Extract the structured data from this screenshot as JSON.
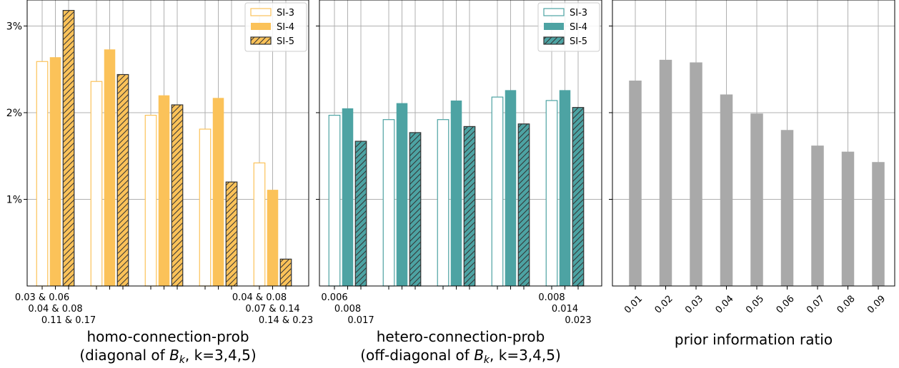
{
  "colors": {
    "orange": "#FBC259",
    "teal": "#4DA3A3",
    "gray": "#A9A9A9",
    "grid": "#B0B0B0",
    "edge": "#333333"
  },
  "chart_data": [
    {
      "type": "bar",
      "xlabel": [
        "homo-connection-prob",
        "(diagonal of ",
        "B",
        "k",
        ", k=3,4,5)"
      ],
      "ylim": [
        0,
        0.033
      ],
      "yticks": [
        0.01,
        0.02,
        0.03
      ],
      "ytick_labels": [
        "1%",
        "2%",
        "3%"
      ],
      "show_ytick_labels": true,
      "color": "#FBC259",
      "legend": "top-right",
      "series": [
        {
          "name": "SI-3",
          "style": "hollow",
          "values": [
            0.0259,
            0.0236,
            0.0197,
            0.0181,
            0.0142
          ]
        },
        {
          "name": "SI-4",
          "style": "filled",
          "values": [
            0.0264,
            0.0273,
            0.022,
            0.0217,
            0.0111
          ]
        },
        {
          "name": "SI-5",
          "style": "hatched",
          "values": [
            0.0318,
            0.0244,
            0.0209,
            0.012,
            0.0031
          ]
        }
      ],
      "first_group_labels": [
        "0.03 & 0.06",
        "0.04 & 0.08",
        "0.11 & 0.17"
      ],
      "last_group_labels": [
        "0.04 & 0.08",
        "0.07 & 0.14",
        "0.14 & 0.23"
      ]
    },
    {
      "type": "bar",
      "xlabel": [
        "hetero-connection-prob",
        "(off-diagonal of ",
        "B",
        "k",
        ", k=3,4,5)"
      ],
      "ylim": [
        0,
        0.033
      ],
      "yticks": [
        0.01,
        0.02,
        0.03
      ],
      "show_ytick_labels": false,
      "color": "#4DA3A3",
      "legend": "top-right",
      "series": [
        {
          "name": "SI-3",
          "style": "hollow",
          "values": [
            0.0197,
            0.0192,
            0.0192,
            0.0218,
            0.0214
          ]
        },
        {
          "name": "SI-4",
          "style": "filled",
          "values": [
            0.0205,
            0.0211,
            0.0214,
            0.0226,
            0.0226
          ]
        },
        {
          "name": "SI-5",
          "style": "hatched",
          "values": [
            0.0167,
            0.0177,
            0.0184,
            0.0187,
            0.0206
          ]
        }
      ],
      "first_group_labels": [
        "0.006",
        "0.008",
        "0.017"
      ],
      "last_group_labels": [
        "0.008",
        "0.014",
        "0.023"
      ]
    },
    {
      "type": "bar",
      "xlabel": [
        "prior information ratio"
      ],
      "ylim": [
        0,
        0.033
      ],
      "yticks": [
        0.01,
        0.02,
        0.03
      ],
      "show_ytick_labels": false,
      "color": "#A9A9A9",
      "categories": [
        "0.01",
        "0.02",
        "0.03",
        "0.04",
        "0.05",
        "0.06",
        "0.07",
        "0.08",
        "0.09"
      ],
      "values": [
        0.0237,
        0.0261,
        0.0258,
        0.0221,
        0.0199,
        0.018,
        0.0162,
        0.0155,
        0.0143
      ]
    }
  ]
}
